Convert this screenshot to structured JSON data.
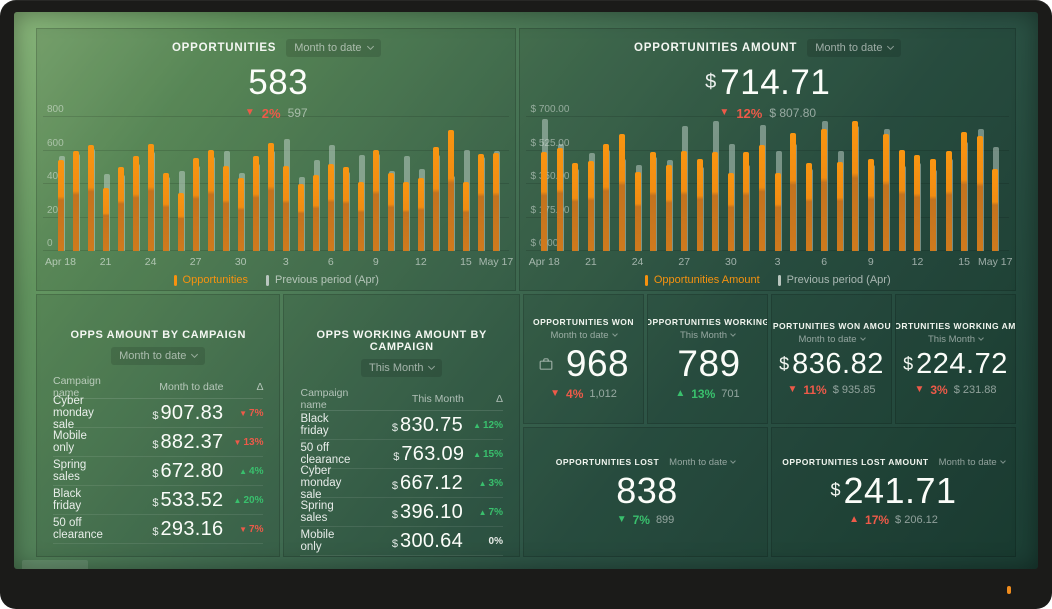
{
  "frame": {
    "led_color": "#ef8c1d"
  },
  "chart_data": [
    {
      "type": "bar",
      "title": "OPPORTUNITIES",
      "period": "Month to date",
      "headline": {
        "prefix": "",
        "value": "583"
      },
      "delta": {
        "symbol": "▼",
        "percent": "2%",
        "tone": "negative",
        "previous": "597"
      },
      "ylim": [
        0,
        800
      ],
      "grid": true,
      "legend_position": "bottom",
      "y_ticks": [
        {
          "label": "800",
          "value": 800
        },
        {
          "label": "600",
          "value": 600
        },
        {
          "label": "400",
          "value": 400
        },
        {
          "label": "200",
          "value": 200
        },
        {
          "label": "0",
          "value": 0
        }
      ],
      "x_ticks": [
        {
          "label": "Apr 18",
          "index": 0
        },
        {
          "label": "21",
          "index": 3
        },
        {
          "label": "24",
          "index": 6
        },
        {
          "label": "27",
          "index": 9
        },
        {
          "label": "30",
          "index": 12
        },
        {
          "label": "3",
          "index": 15
        },
        {
          "label": "6",
          "index": 18
        },
        {
          "label": "9",
          "index": 21
        },
        {
          "label": "12",
          "index": 24
        },
        {
          "label": "15",
          "index": 27
        },
        {
          "label": "May 17",
          "index": 29
        }
      ],
      "series": [
        {
          "name": "Opportunities",
          "kind": "current",
          "color": "#f6920f",
          "label_color": "#f6920f",
          "marker_color": "#f6920f",
          "values": [
            545,
            600,
            630,
            375,
            500,
            570,
            640,
            465,
            345,
            555,
            605,
            510,
            435,
            570,
            645,
            510,
            400,
            455,
            520,
            500,
            410,
            605,
            465,
            410,
            435,
            620,
            720,
            410,
            580,
            585
          ]
        },
        {
          "name": "Previous period (Apr)",
          "kind": "previous",
          "color": "rgba(198,213,205,0.5)",
          "label_color": "rgba(255,255,255,0.6)",
          "marker_color": "#b9c6bf",
          "values": [
            565,
            580,
            610,
            460,
            455,
            520,
            590,
            440,
            480,
            510,
            560,
            595,
            465,
            520,
            600,
            670,
            440,
            545,
            635,
            470,
            575,
            580,
            475,
            570,
            490,
            575,
            450,
            605,
            560,
            600
          ]
        }
      ]
    },
    {
      "type": "bar",
      "title": "OPPORTUNITIES AMOUNT",
      "period": "Month to date",
      "headline": {
        "prefix": "$",
        "value": "714.71"
      },
      "delta": {
        "symbol": "▼",
        "percent": "12%",
        "tone": "negative",
        "previous": "$ 807.80"
      },
      "ylim": [
        0,
        700
      ],
      "grid": true,
      "legend_position": "bottom",
      "y_ticks": [
        {
          "label": "$ 700.00",
          "value": 700
        },
        {
          "label": "$ 525.00",
          "value": 525
        },
        {
          "label": "$ 350.00",
          "value": 350
        },
        {
          "label": "$ 175.00",
          "value": 175
        },
        {
          "label": "$ 0.00",
          "value": 0
        }
      ],
      "x_ticks": [
        {
          "label": "Apr 18",
          "index": 0
        },
        {
          "label": "21",
          "index": 3
        },
        {
          "label": "24",
          "index": 6
        },
        {
          "label": "27",
          "index": 9
        },
        {
          "label": "30",
          "index": 12
        },
        {
          "label": "3",
          "index": 15
        },
        {
          "label": "6",
          "index": 18
        },
        {
          "label": "9",
          "index": 21
        },
        {
          "label": "12",
          "index": 24
        },
        {
          "label": "15",
          "index": 27
        },
        {
          "label": "May 17",
          "index": 29
        }
      ],
      "series": [
        {
          "name": "Opportunities Amount",
          "kind": "current",
          "color": "#f6920f",
          "label_color": "#f6920f",
          "marker_color": "#f6920f",
          "values": [
            515,
            540,
            460,
            470,
            560,
            610,
            415,
            515,
            450,
            520,
            480,
            515,
            410,
            515,
            555,
            405,
            615,
            460,
            640,
            465,
            680,
            480,
            610,
            530,
            500,
            480,
            520,
            620,
            600,
            430
          ]
        },
        {
          "name": "Previous period (Apr)",
          "kind": "previous",
          "color": "rgba(198,213,205,0.5)",
          "label_color": "rgba(255,255,255,0.6)",
          "marker_color": "#b9c6bf",
          "values": [
            690,
            560,
            430,
            510,
            530,
            480,
            450,
            490,
            475,
            655,
            440,
            680,
            560,
            450,
            660,
            525,
            560,
            430,
            680,
            520,
            655,
            450,
            640,
            445,
            460,
            425,
            480,
            570,
            640,
            545
          ]
        }
      ]
    }
  ],
  "tables": [
    {
      "title": "OPPS AMOUNT BY CAMPAIGN",
      "period": "Month to date",
      "columns": [
        "Campaign name",
        "Month to date",
        "Δ"
      ],
      "rows": [
        {
          "name": "Cyber monday sale",
          "prefix": "$",
          "value": "907.83",
          "symbol": "▼",
          "delta": "7%",
          "tone": "negative"
        },
        {
          "name": "Mobile only",
          "prefix": "$",
          "value": "882.37",
          "symbol": "▼",
          "delta": "13%",
          "tone": "negative"
        },
        {
          "name": "Spring sales",
          "prefix": "$",
          "value": "672.80",
          "symbol": "▲",
          "delta": "4%",
          "tone": "positive"
        },
        {
          "name": "Black friday",
          "prefix": "$",
          "value": "533.52",
          "symbol": "▲",
          "delta": "20%",
          "tone": "positive"
        },
        {
          "name": "50 off clearance",
          "prefix": "$",
          "value": "293.16",
          "symbol": "▼",
          "delta": "7%",
          "tone": "negative"
        }
      ]
    },
    {
      "title": "OPPS WORKING AMOUNT BY CAMPAIGN",
      "period": "This Month",
      "columns": [
        "Campaign name",
        "This Month",
        "Δ"
      ],
      "rows": [
        {
          "name": "Black friday",
          "prefix": "$",
          "value": "830.75",
          "symbol": "▲",
          "delta": "12%",
          "tone": "positive"
        },
        {
          "name": "50 off clearance",
          "prefix": "$",
          "value": "763.09",
          "symbol": "▲",
          "delta": "15%",
          "tone": "positive"
        },
        {
          "name": "Cyber monday sale",
          "prefix": "$",
          "value": "667.12",
          "symbol": "▲",
          "delta": "3%",
          "tone": "positive"
        },
        {
          "name": "Spring sales",
          "prefix": "$",
          "value": "396.10",
          "symbol": "▲",
          "delta": "7%",
          "tone": "positive"
        },
        {
          "name": "Mobile only",
          "prefix": "$",
          "value": "300.64",
          "symbol": "",
          "delta": "0%",
          "tone": "neutral"
        }
      ]
    }
  ],
  "cards": [
    {
      "title": "OPPORTUNITIES WON",
      "period": "Month to date",
      "prefix": "",
      "value": "968",
      "delta": {
        "symbol": "▼",
        "pct": "4%",
        "tone": "negative",
        "prev": "1,012"
      }
    },
    {
      "title": "OPPORTUNITIES WORKING",
      "period": "This Month",
      "prefix": "",
      "value": "789",
      "delta": {
        "symbol": "▲",
        "pct": "13%",
        "tone": "positive",
        "prev": "701"
      }
    },
    {
      "title": "OPPORTUNITIES WON AMOUNT",
      "period": "Month to date",
      "prefix": "$",
      "value": "836.82",
      "delta": {
        "symbol": "▼",
        "pct": "11%",
        "tone": "negative",
        "prev": "$ 935.85"
      }
    },
    {
      "title": "OPPORTUNITIES WORKING AMOUN",
      "period": "This Month",
      "prefix": "$",
      "value": "224.72",
      "delta": {
        "symbol": "▼",
        "pct": "3%",
        "tone": "negative",
        "prev": "$ 231.88"
      }
    },
    {
      "title": "OPPORTUNITIES LOST",
      "period": "Month to date",
      "prefix": "",
      "value": "838",
      "delta": {
        "symbol": "▼",
        "pct": "7%",
        "tone": "positive",
        "prev": "899"
      }
    },
    {
      "title": "OPPORTUNITIES LOST AMOUNT",
      "period": "Month to date",
      "prefix": "$",
      "value": "241.71",
      "delta": {
        "symbol": "▲",
        "pct": "17%",
        "tone": "negative",
        "prev": "$ 206.12"
      }
    }
  ]
}
